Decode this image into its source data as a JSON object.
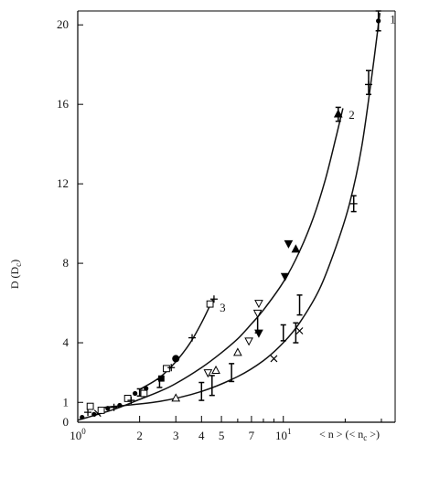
{
  "chart_data": {
    "type": "scatter",
    "ylabel": "D (D_c)",
    "ylabel_main": "D (D",
    "ylabel_sub": "c",
    "ylabel_close": ")",
    "xlabel": "< n > (< n_c >)",
    "xlabel_main": "< n > (< n",
    "xlabel_sub": "c",
    "xlabel_close": " >)",
    "xscale": "log",
    "xlim": [
      1,
      35
    ],
    "ylim": [
      0,
      20.7
    ],
    "grid": false,
    "x_ticks": [
      {
        "value": 1,
        "label": "10",
        "sup": "0"
      },
      {
        "value": 2,
        "label": "2",
        "sup": ""
      },
      {
        "value": 3,
        "label": "3",
        "sup": ""
      },
      {
        "value": 4,
        "label": "4",
        "sup": ""
      },
      {
        "value": 5,
        "label": "5",
        "sup": ""
      },
      {
        "value": 7,
        "label": "7",
        "sup": ""
      },
      {
        "value": 10,
        "label": "10",
        "sup": "1"
      }
    ],
    "y_ticks": [
      {
        "value": 0,
        "label": "0"
      },
      {
        "value": 1,
        "label": "1"
      },
      {
        "value": 4,
        "label": "4"
      },
      {
        "value": 8,
        "label": "8"
      },
      {
        "value": 12,
        "label": "12"
      },
      {
        "value": 16,
        "label": "16"
      },
      {
        "value": 20,
        "label": "20"
      }
    ],
    "curves": [
      {
        "name": "1",
        "x": [
          1.35,
          2.5,
          4,
          6,
          8,
          10,
          12,
          15,
          18,
          21,
          24,
          27,
          29.5
        ],
        "y": [
          0.75,
          1.05,
          1.55,
          2.3,
          3.1,
          4.0,
          5.0,
          6.7,
          8.8,
          11.0,
          13.8,
          17.5,
          20.6
        ]
      },
      {
        "name": "2",
        "x": [
          1.0,
          1.5,
          2.0,
          2.5,
          3.0,
          4.0,
          5.0,
          6.0,
          7.0,
          8.0,
          10.0,
          12.0,
          14.0,
          16.0,
          18.0,
          19.5
        ],
        "y": [
          0.1,
          0.65,
          1.15,
          1.55,
          1.95,
          2.75,
          3.5,
          4.2,
          4.95,
          5.65,
          7.05,
          8.6,
          10.3,
          12.2,
          14.3,
          15.8
        ]
      },
      {
        "name": "3",
        "x": [
          2.0,
          2.5,
          3.0,
          3.5,
          4.0,
          4.55
        ],
        "y": [
          1.65,
          2.25,
          3.05,
          3.95,
          5.0,
          6.2
        ]
      }
    ],
    "markers": [
      {
        "x": 1.05,
        "y": 0.25,
        "m": "dot"
      },
      {
        "x": 1.12,
        "y": 0.5,
        "m": "plus"
      },
      {
        "x": 1.15,
        "y": 0.8,
        "m": "sq"
      },
      {
        "x": 1.2,
        "y": 0.4,
        "m": "dot"
      },
      {
        "x": 1.25,
        "y": 0.45,
        "m": "x"
      },
      {
        "x": 1.3,
        "y": 0.6,
        "m": "sq"
      },
      {
        "x": 1.4,
        "y": 0.7,
        "m": "dot"
      },
      {
        "x": 1.5,
        "y": 0.75,
        "m": "plus"
      },
      {
        "x": 1.6,
        "y": 0.85,
        "m": "dot"
      },
      {
        "x": 1.75,
        "y": 1.2,
        "m": "sq"
      },
      {
        "x": 1.82,
        "y": 1.1,
        "m": "plus"
      },
      {
        "x": 1.9,
        "y": 1.45,
        "m": "dot"
      },
      {
        "x": 2.1,
        "y": 1.45,
        "m": "sq"
      },
      {
        "x": 2.15,
        "y": 1.7,
        "m": "dot"
      },
      {
        "x": 2.55,
        "y": 2.2,
        "m": "sqf"
      },
      {
        "x": 2.7,
        "y": 2.7,
        "m": "sq"
      },
      {
        "x": 2.85,
        "y": 2.75,
        "m": "plus"
      },
      {
        "x": 3.0,
        "y": 3.2,
        "m": "dotL"
      },
      {
        "x": 3.0,
        "y": 1.2,
        "m": "tri"
      },
      {
        "x": 3.6,
        "y": 4.25,
        "m": "plus"
      },
      {
        "x": 4.4,
        "y": 5.95,
        "m": "sq"
      },
      {
        "x": 4.6,
        "y": 6.2,
        "m": "plus"
      },
      {
        "x": 4.3,
        "y": 2.5,
        "m": "tridown"
      },
      {
        "x": 4.7,
        "y": 2.6,
        "m": "tri"
      },
      {
        "x": 6.0,
        "y": 3.5,
        "m": "tri"
      },
      {
        "x": 6.8,
        "y": 4.1,
        "m": "tridown"
      },
      {
        "x": 7.5,
        "y": 5.5,
        "m": "tridown"
      },
      {
        "x": 7.6,
        "y": 6.0,
        "m": "tridown"
      },
      {
        "x": 7.6,
        "y": 4.5,
        "m": "tridownf"
      },
      {
        "x": 10.2,
        "y": 7.35,
        "m": "tridownf"
      },
      {
        "x": 10.6,
        "y": 9.0,
        "m": "tridownf"
      },
      {
        "x": 11.5,
        "y": 8.7,
        "m": "trif"
      },
      {
        "x": 18.5,
        "y": 15.5,
        "m": "trif"
      },
      {
        "x": 9.0,
        "y": 3.2,
        "m": "x"
      },
      {
        "x": 12.0,
        "y": 4.6,
        "m": "x"
      },
      {
        "x": 22.0,
        "y": 11.0,
        "m": "plus"
      },
      {
        "x": 26.0,
        "y": 17.0,
        "m": "plus"
      },
      {
        "x": 29.0,
        "y": 20.2,
        "m": "dot"
      }
    ],
    "error_bars": [
      {
        "x": 2.0,
        "y": 1.5,
        "err": 0.18
      },
      {
        "x": 2.5,
        "y": 1.95,
        "err": 0.2
      },
      {
        "x": 4.0,
        "y": 1.55,
        "err": 0.45
      },
      {
        "x": 4.5,
        "y": 1.85,
        "err": 0.5
      },
      {
        "x": 5.6,
        "y": 2.5,
        "err": 0.45
      },
      {
        "x": 7.5,
        "y": 5.0,
        "err": 0.5
      },
      {
        "x": 10.0,
        "y": 4.5,
        "err": 0.4
      },
      {
        "x": 11.5,
        "y": 4.5,
        "err": 0.5
      },
      {
        "x": 12.0,
        "y": 5.9,
        "err": 0.5
      },
      {
        "x": 18.5,
        "y": 15.5,
        "err": 0.35
      },
      {
        "x": 22.0,
        "y": 11.0,
        "err": 0.4
      },
      {
        "x": 26.0,
        "y": 17.1,
        "err": 0.6
      },
      {
        "x": 29.0,
        "y": 20.2,
        "err": 0.5
      }
    ],
    "curve_labels": [
      {
        "text": "1",
        "x": 33.0,
        "y": 20.3
      },
      {
        "text": "2",
        "x": 20.8,
        "y": 15.5
      },
      {
        "text": "3",
        "x": 4.9,
        "y": 5.8
      }
    ]
  }
}
